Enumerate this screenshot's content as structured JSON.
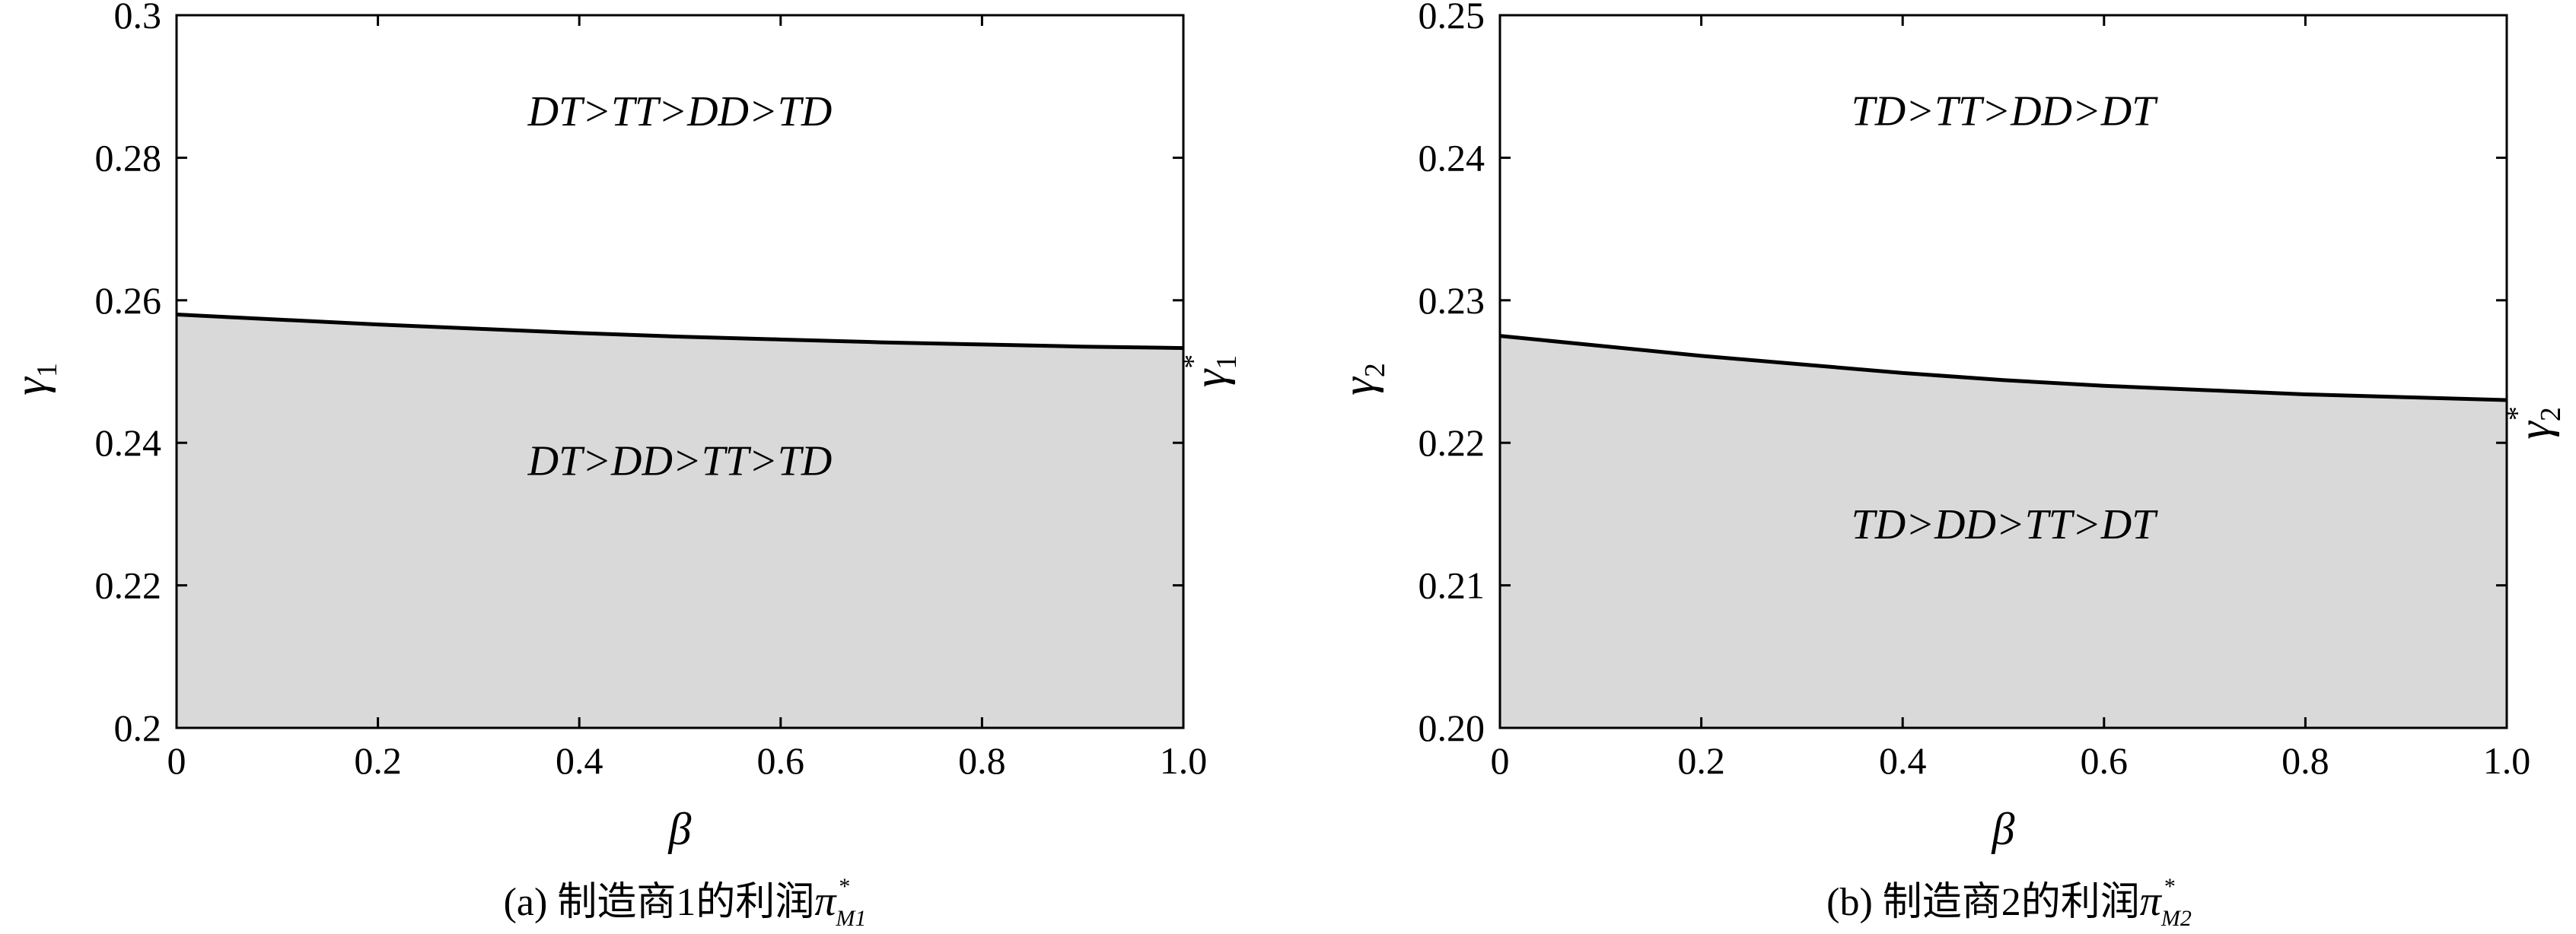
{
  "chart_data": [
    {
      "type": "area",
      "panel": "a",
      "caption": "(a) 制造商1的利润",
      "caption_symbol": "π",
      "caption_symbol_sub": "M1",
      "caption_symbol_sup": "*",
      "xlabel": "β",
      "ylabel": "γ",
      "ylabel_sub": "1",
      "curve_label": "γ",
      "curve_label_sub": "1",
      "curve_label_sup": "*",
      "xlim": [
        0,
        1.0
      ],
      "ylim": [
        0.2,
        0.3
      ],
      "xticks": [
        0,
        0.2,
        0.4,
        0.6,
        0.8,
        1.0
      ],
      "xtick_labels": [
        "0",
        "0.2",
        "0.4",
        "0.6",
        "0.8",
        "1.0"
      ],
      "yticks": [
        0.2,
        0.22,
        0.24,
        0.26,
        0.28,
        0.3
      ],
      "ytick_labels": [
        "0.2",
        "0.22",
        "0.24",
        "0.26",
        "0.28",
        "0.3"
      ],
      "boundary": {
        "x": [
          0,
          0.1,
          0.2,
          0.3,
          0.4,
          0.5,
          0.6,
          0.7,
          0.8,
          0.9,
          1.0
        ],
        "y": [
          0.258,
          0.2573,
          0.2566,
          0.256,
          0.2554,
          0.2549,
          0.2545,
          0.2541,
          0.2538,
          0.2535,
          0.2533
        ]
      },
      "regions": [
        {
          "label": "DT>TT>DD>TD",
          "position": "above",
          "fill": "#ffffff",
          "x": 0.5,
          "y": 0.2845
        },
        {
          "label": "DT>DD>TT>TD",
          "position": "below",
          "fill": "#d9d9d9",
          "x": 0.5,
          "y": 0.2355
        }
      ]
    },
    {
      "type": "area",
      "panel": "b",
      "caption": "(b) 制造商2的利润",
      "caption_symbol": "π",
      "caption_symbol_sub": "M2",
      "caption_symbol_sup": "*",
      "xlabel": "β",
      "ylabel": "γ",
      "ylabel_sub": "2",
      "curve_label": "γ",
      "curve_label_sub": "2",
      "curve_label_sup": "*",
      "xlim": [
        0,
        1.0
      ],
      "ylim": [
        0.2,
        0.25
      ],
      "xticks": [
        0,
        0.2,
        0.4,
        0.6,
        0.8,
        1.0
      ],
      "xtick_labels": [
        "0",
        "0.2",
        "0.4",
        "0.6",
        "0.8",
        "1.0"
      ],
      "yticks": [
        0.2,
        0.21,
        0.22,
        0.23,
        0.24,
        0.25
      ],
      "ytick_labels": [
        "0.20",
        "0.21",
        "0.22",
        "0.23",
        "0.24",
        "0.25"
      ],
      "boundary": {
        "x": [
          0,
          0.1,
          0.2,
          0.3,
          0.4,
          0.5,
          0.6,
          0.7,
          0.8,
          0.9,
          1.0
        ],
        "y": [
          0.2275,
          0.2268,
          0.2261,
          0.2255,
          0.2249,
          0.2244,
          0.224,
          0.2237,
          0.2234,
          0.2232,
          0.223
        ]
      },
      "regions": [
        {
          "label": "TD>TT>DD>DT",
          "position": "above",
          "fill": "#ffffff",
          "x": 0.5,
          "y": 0.2423
        },
        {
          "label": "TD>DD>TT>DT",
          "position": "below",
          "fill": "#d9d9d9",
          "x": 0.5,
          "y": 0.2133
        }
      ]
    }
  ],
  "colors": {
    "lower_region": "#d9d9d9",
    "upper_region": "#ffffff",
    "boundary_line": "#000000",
    "frame": "#000000"
  }
}
